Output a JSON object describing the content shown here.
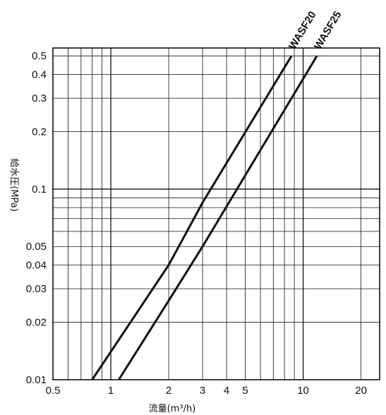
{
  "chart_data": {
    "type": "line",
    "x_scale": "log",
    "y_scale": "log",
    "xlim": [
      0.5,
      25
    ],
    "ylim": [
      0.01,
      0.55
    ],
    "grid": true,
    "xlabel": "流量(m³/h)",
    "ylabel": "給水圧(MPa)",
    "x_ticks": [
      {
        "value": 0.5,
        "label": "0.5"
      },
      {
        "value": 1,
        "label": "1"
      },
      {
        "value": 2,
        "label": "2"
      },
      {
        "value": 3,
        "label": "3"
      },
      {
        "value": 4,
        "label": "4"
      },
      {
        "value": 5,
        "label": "5"
      },
      {
        "value": 10,
        "label": "10"
      },
      {
        "value": 20,
        "label": "20"
      }
    ],
    "y_ticks": [
      {
        "value": 0.01,
        "label": "0.01"
      },
      {
        "value": 0.02,
        "label": "0.02"
      },
      {
        "value": 0.03,
        "label": "0.03"
      },
      {
        "value": 0.04,
        "label": "0.04"
      },
      {
        "value": 0.05,
        "label": "0.05"
      },
      {
        "value": 0.1,
        "label": "0.1"
      },
      {
        "value": 0.2,
        "label": "0.2"
      },
      {
        "value": 0.3,
        "label": "0.3"
      },
      {
        "value": 0.4,
        "label": "0.4"
      },
      {
        "value": 0.5,
        "label": "0.5"
      }
    ],
    "series": [
      {
        "name": "WASF20",
        "x": [
          0.8,
          2.0,
          3.0,
          8.7
        ],
        "y": [
          0.01,
          0.04,
          0.085,
          0.5
        ]
      },
      {
        "name": "WASF25",
        "x": [
          1.1,
          2.0,
          3.0,
          11.8
        ],
        "y": [
          0.01,
          0.026,
          0.05,
          0.5
        ]
      }
    ]
  }
}
